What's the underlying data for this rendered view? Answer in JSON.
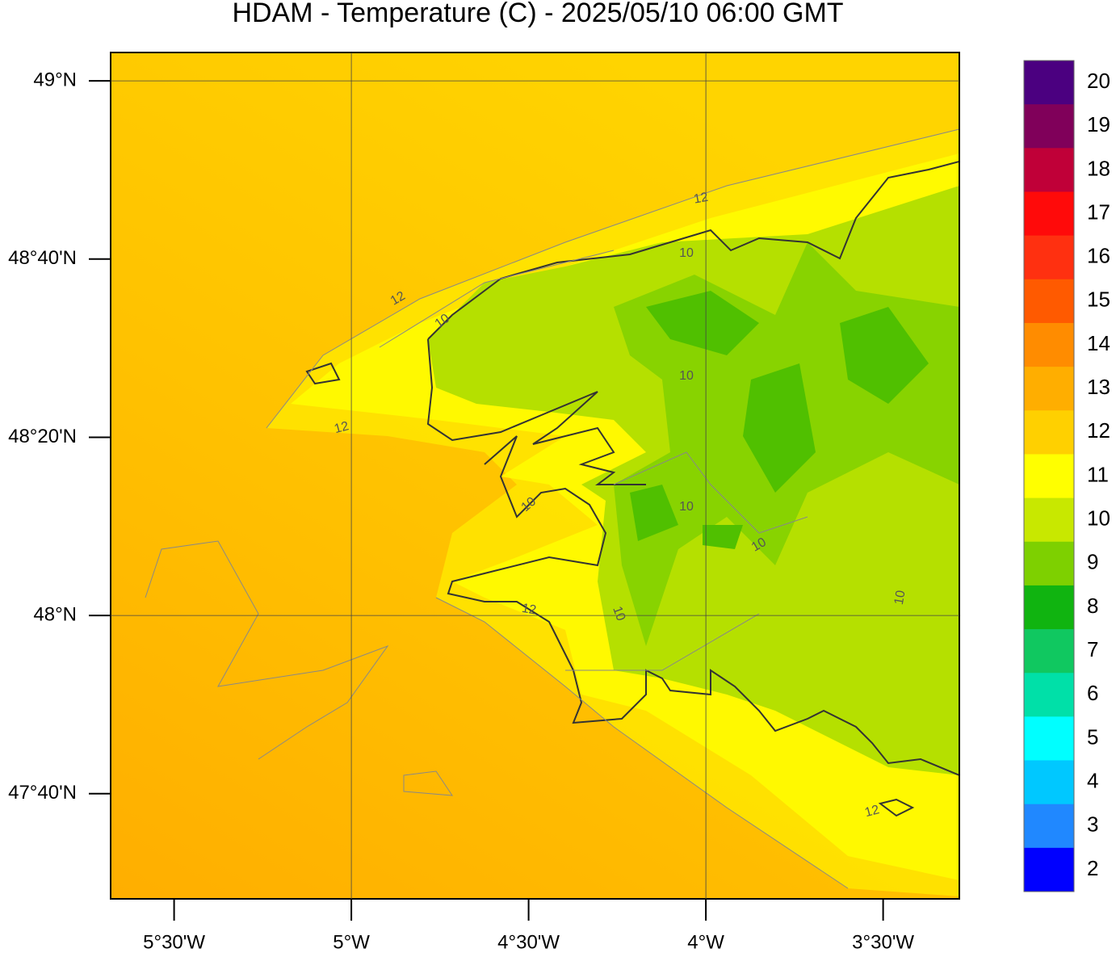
{
  "map": {
    "title": "HDAM - Temperature (C)  -  2025/05/10  06:00 GMT",
    "xlim": [
      -5.679,
      -3.285
    ],
    "ylim": [
      47.47,
      49.053
    ],
    "lat_ticks": [
      {
        "value": 49,
        "label": "49°N"
      },
      {
        "value": 48.6667,
        "label": "48°40'N"
      },
      {
        "value": 48.3333,
        "label": "48°20'N"
      },
      {
        "value": 48,
        "label": "48°N"
      },
      {
        "value": 47.6667,
        "label": "47°40'N"
      }
    ],
    "lon_ticks": [
      {
        "value": -5.5,
        "label": "5°30'W"
      },
      {
        "value": -5,
        "label": "5°W"
      },
      {
        "value": -4.5,
        "label": "4°30'W"
      },
      {
        "value": -4,
        "label": "4°W"
      },
      {
        "value": -3.5,
        "label": "3°30'W"
      }
    ],
    "grid_lat": [
      49,
      48
    ],
    "grid_lon": [
      -5,
      -4
    ],
    "colorbar": {
      "ticks": [
        20,
        19,
        18,
        17,
        16,
        15,
        14,
        13,
        12,
        11,
        10,
        9,
        8,
        7,
        6,
        5,
        4,
        3,
        2
      ],
      "colors": [
        "#4b0080",
        "#80005a",
        "#c00038",
        "#ff0a0a",
        "#ff3010",
        "#ff5a00",
        "#ff8c00",
        "#ffae00",
        "#ffd000",
        "#ffff00",
        "#c8e800",
        "#7ed000",
        "#10b410",
        "#10c860",
        "#00e0a8",
        "#00ffff",
        "#00c8ff",
        "#2088ff",
        "#0000ff"
      ]
    },
    "contour_labels": [
      12,
      10,
      12,
      10,
      10,
      12,
      10,
      10,
      10,
      12,
      10,
      10,
      12
    ]
  }
}
